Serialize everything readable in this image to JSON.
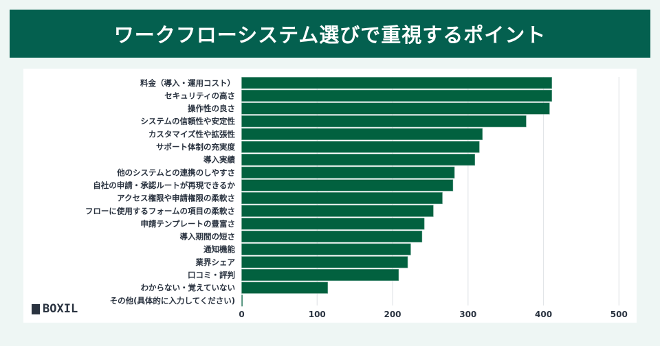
{
  "title": "ワークフローシステム選びで重視するポイント",
  "logo": "BOXIL",
  "colors": {
    "title_bg": "#04604f",
    "bar": "#02613f",
    "background": "#eef6f4"
  },
  "chart_data": {
    "type": "bar",
    "orientation": "horizontal",
    "categories": [
      "料金（導入・運用コスト）",
      "セキュリティの高さ",
      "操作性の良さ",
      "システムの信頼性や安定性",
      "カスタマイズ性や拡張性",
      "サポート体制の充実度",
      "導入実績",
      "他のシステムとの連携のしやすさ",
      "自社の申請・承認ルートが再現できるか",
      "アクセス権限や申請権限の柔軟さ",
      "フローに使用するフォームの項目の柔軟さ",
      "申請テンプレートの豊富さ",
      "導入期間の短さ",
      "通知機能",
      "業界シェア",
      "口コミ・評判",
      "わからない・覚えていない",
      "その他(具体的に入力してください)"
    ],
    "values": [
      411,
      411,
      408,
      377,
      319,
      315,
      309,
      282,
      280,
      266,
      254,
      242,
      239,
      224,
      220,
      208,
      114,
      1
    ],
    "xlim": [
      0,
      500
    ],
    "xticks": [
      "0",
      "100",
      "200",
      "300",
      "400",
      "500"
    ],
    "grid": true
  }
}
